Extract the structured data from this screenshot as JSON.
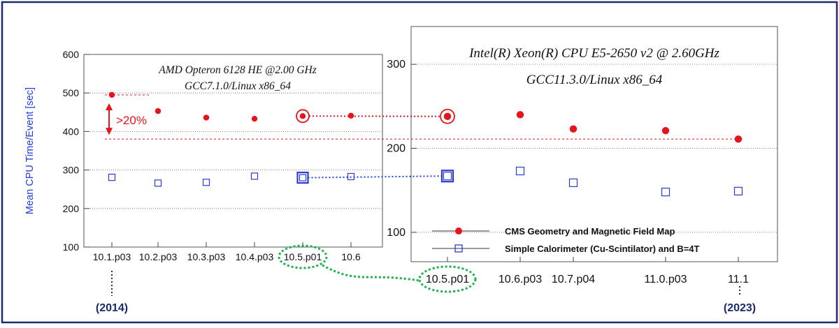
{
  "figure": {
    "ylabel": "Mean CPU Time/Event [sec]",
    "year_start": "(2014)",
    "year_end": "(2023)",
    "diff_label": ">20%"
  },
  "colors": {
    "cms": "#e8141b",
    "calo": "#2a3bd6",
    "ylabel": "#1f3fe0",
    "year": "#1b2a6b",
    "link": "#19b34a",
    "frame": "#1b2a6b"
  },
  "legend": {
    "cms": "CMS Geometry and Magnetic Field Map",
    "calo": "Simple Calorimeter (Cu-Scintilator) and B=4T"
  },
  "chart_data": [
    {
      "type": "scatter",
      "title_line1": "AMD Opteron 6128 HE @2.00 GHz",
      "title_line2": "GCC7.1.0/Linux x86_64",
      "categories": [
        "10.1.p03",
        "10.2.p03",
        "10.3.p03",
        "10.4.p03",
        "10.5.p01",
        "10.6"
      ],
      "ylim": [
        100,
        600
      ],
      "yticks": [
        100,
        200,
        300,
        400,
        500,
        600
      ],
      "grid": true,
      "highlight_index": 4,
      "series": [
        {
          "key": "cms",
          "values": [
            495,
            453,
            436,
            433,
            440,
            441
          ]
        },
        {
          "key": "calo",
          "values": [
            281,
            266,
            268,
            284,
            280,
            283
          ]
        }
      ]
    },
    {
      "type": "scatter",
      "title_line1": "Intel(R) Xeon(R) CPU E5-2650 v2 @ 2.60GHz",
      "title_line2": "GCC11.3.0/Linux x86_64",
      "categories": [
        "10.5.p01",
        "10.6.p03",
        "10.7.p04",
        "11.0.p03",
        "11.1"
      ],
      "ylim": [
        65,
        345
      ],
      "yticks": [
        100,
        200,
        300
      ],
      "grid": true,
      "highlight_index": 0,
      "series": [
        {
          "key": "cms",
          "values": [
            238,
            240,
            223,
            221,
            211
          ]
        },
        {
          "key": "calo",
          "values": [
            167,
            173,
            159,
            148,
            149
          ]
        }
      ]
    }
  ]
}
